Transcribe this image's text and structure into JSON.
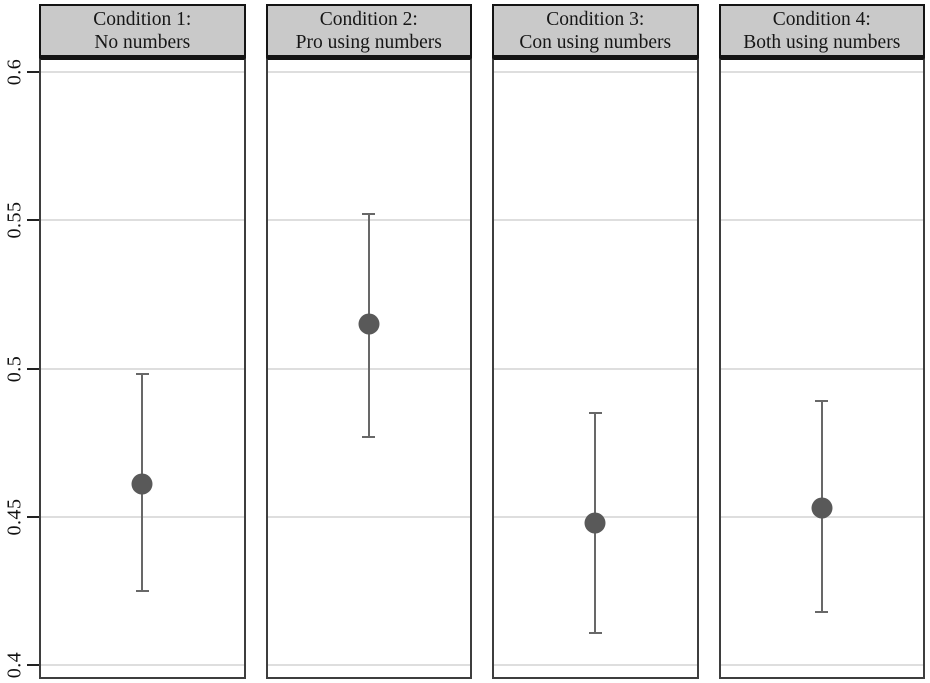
{
  "chart_data": {
    "type": "scatter",
    "description": "Four-panel coefficient plot: point estimates with confidence intervals by experimental condition",
    "title": "",
    "xlabel": "",
    "ylabel": "",
    "ylim": [
      0.396,
      0.604
    ],
    "yticks": [
      0.4,
      0.45,
      0.5,
      0.55,
      0.6
    ],
    "ytick_labels": [
      "0.4",
      "0.45",
      "0.5",
      "0.55",
      "0.6"
    ],
    "grid": true,
    "legend": false,
    "panels": [
      {
        "title_line1": "Condition 1:",
        "title_line2": "No numbers",
        "estimate": 0.461,
        "ci_low": 0.425,
        "ci_high": 0.498
      },
      {
        "title_line1": "Condition 2:",
        "title_line2": "Pro using numbers",
        "estimate": 0.515,
        "ci_low": 0.477,
        "ci_high": 0.552
      },
      {
        "title_line1": "Condition 3:",
        "title_line2": "Con using numbers",
        "estimate": 0.448,
        "ci_low": 0.411,
        "ci_high": 0.485
      },
      {
        "title_line1": "Condition 4:",
        "title_line2": "Both using numbers",
        "estimate": 0.453,
        "ci_low": 0.418,
        "ci_high": 0.489
      }
    ],
    "colors": {
      "marker": "#595959",
      "error_bar": "#686868",
      "gridline": "#dedede",
      "header_fill": "#c9c9c9",
      "header_border": "#141414",
      "plot_border": "#3e3e3e",
      "tick": "#222222",
      "background": "#ffffff"
    }
  }
}
